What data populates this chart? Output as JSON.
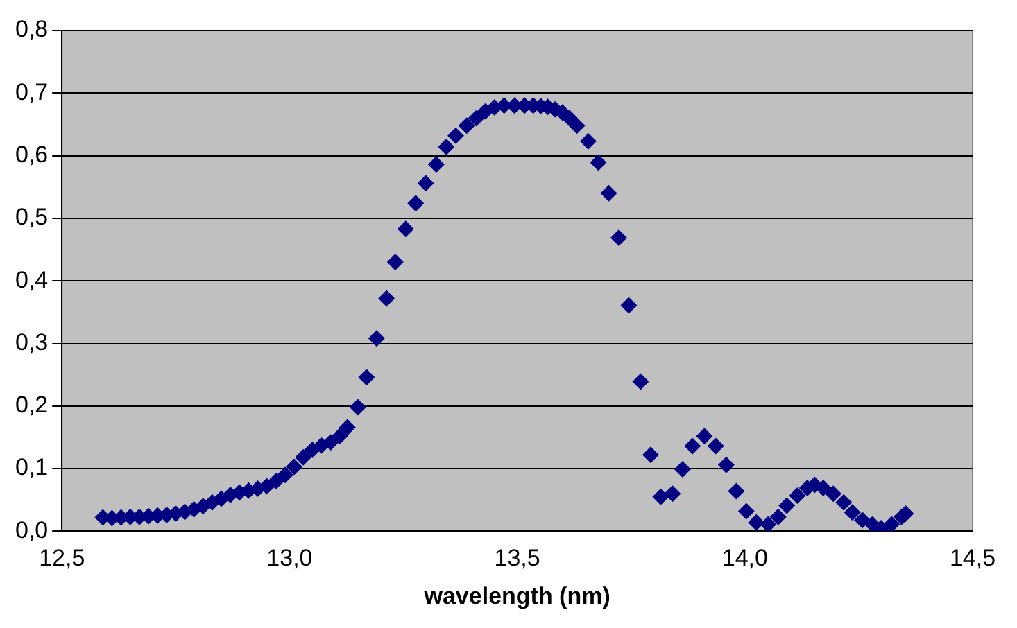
{
  "chart_data": {
    "type": "scatter",
    "xlabel": "wavelength (nm)",
    "marker": "diamond",
    "grid": "y",
    "legend": false,
    "xlim": [
      12.5,
      14.5
    ],
    "xticks": [
      {
        "value": 12.5,
        "label": "12,5"
      },
      {
        "value": 13,
        "label": "13,0"
      },
      {
        "value": 13.5,
        "label": "13,5"
      },
      {
        "value": 14,
        "label": "14,0"
      },
      {
        "value": 14.5,
        "label": "14,5"
      }
    ],
    "ylim": [
      0,
      0.8
    ],
    "yticks": [
      {
        "value": 0,
        "label": "0,0"
      },
      {
        "value": 0.1,
        "label": "0,1"
      },
      {
        "value": 0.2,
        "label": "0,2"
      },
      {
        "value": 0.3,
        "label": "0,3"
      },
      {
        "value": 0.4,
        "label": "0,4"
      },
      {
        "value": 0.5,
        "label": "0,5"
      },
      {
        "value": 0.6,
        "label": "0,6"
      },
      {
        "value": 0.7,
        "label": "0,7"
      },
      {
        "value": 0.8,
        "label": "0,8"
      }
    ],
    "series": [
      {
        "color": "#000080",
        "x": [
          12.59,
          12.61,
          12.63,
          12.65,
          12.67,
          12.69,
          12.71,
          12.73,
          12.75,
          12.77,
          12.79,
          12.81,
          12.83,
          12.85,
          12.87,
          12.89,
          12.91,
          12.93,
          12.95,
          12.97,
          12.99,
          13.01,
          13.03,
          13.05,
          13.07,
          13.09,
          13.11,
          13.127,
          13.15,
          13.169,
          13.191,
          13.213,
          13.232,
          13.255,
          13.277,
          13.299,
          13.322,
          13.344,
          13.365,
          13.389,
          13.41,
          13.43,
          13.45,
          13.471,
          13.494,
          13.516,
          13.535,
          13.552,
          13.567,
          13.583,
          13.599,
          13.615,
          13.631,
          13.656,
          13.678,
          13.701,
          13.723,
          13.745,
          13.771,
          13.793,
          13.815,
          13.841,
          13.863,
          13.885,
          13.911,
          13.936,
          13.959,
          13.981,
          14.003,
          14.025,
          14.051,
          14.073,
          14.092,
          14.115,
          14.137,
          14.153,
          14.172,
          14.194,
          14.217,
          14.236,
          14.258,
          14.28,
          14.299,
          14.322,
          14.344,
          14.353
        ],
        "values": [
          0.022,
          0.021,
          0.022,
          0.023,
          0.023,
          0.024,
          0.025,
          0.026,
          0.028,
          0.031,
          0.035,
          0.04,
          0.046,
          0.052,
          0.058,
          0.062,
          0.065,
          0.068,
          0.072,
          0.08,
          0.09,
          0.103,
          0.118,
          0.13,
          0.137,
          0.142,
          0.152,
          0.166,
          0.198,
          0.246,
          0.308,
          0.372,
          0.43,
          0.483,
          0.524,
          0.556,
          0.586,
          0.614,
          0.632,
          0.648,
          0.66,
          0.671,
          0.677,
          0.68,
          0.68,
          0.68,
          0.68,
          0.679,
          0.678,
          0.674,
          0.669,
          0.66,
          0.648,
          0.623,
          0.589,
          0.54,
          0.469,
          0.361,
          0.239,
          0.122,
          0.055,
          0.06,
          0.099,
          0.136,
          0.152,
          0.136,
          0.106,
          0.064,
          0.032,
          0.014,
          0.011,
          0.023,
          0.041,
          0.057,
          0.069,
          0.074,
          0.069,
          0.06,
          0.046,
          0.03,
          0.018,
          0.011,
          0.005,
          0.011,
          0.023,
          0.028
        ]
      }
    ]
  }
}
